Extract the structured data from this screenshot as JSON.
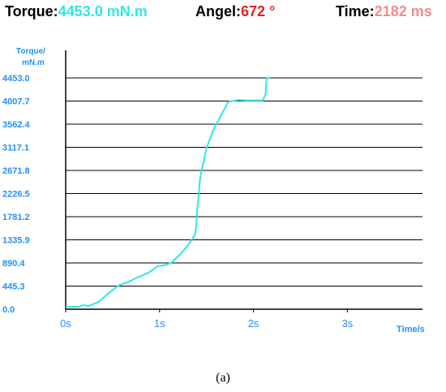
{
  "status": {
    "torque_label": "Torque:",
    "torque_value": "4453.0 mN.m",
    "angle_label": "Angel:",
    "angle_value": "672 °",
    "time_label": "Time:",
    "time_value": "2182 ms"
  },
  "colors": {
    "torque": "#2fe7e7",
    "angle": "#e8241c",
    "time": "#f08c8c",
    "axis_text": "#1e90ff",
    "line": "#2fe7e7",
    "grid": "#000000"
  },
  "chart_data": {
    "type": "line",
    "ylabel_line1": "Torque/",
    "ylabel_line2": "mN.m",
    "xlabel": "Time/s",
    "y_ticks": [
      "0.0",
      "445.3",
      "890.4",
      "1335.9",
      "1781.2",
      "2226.5",
      "2671.8",
      "3117.1",
      "3562.4",
      "4007.7",
      "4453.0"
    ],
    "x_ticks": [
      "0s",
      "1s",
      "2s",
      "3s"
    ],
    "ylim": [
      0,
      4453
    ],
    "xlim": [
      0,
      3.8
    ],
    "grid": true,
    "series": [
      {
        "x": [
          0,
          0.15,
          0.19,
          0.24,
          0.35,
          0.45,
          0.55,
          0.58,
          0.66,
          0.75,
          0.88,
          0.98,
          1.06,
          1.12,
          1.16,
          1.21,
          1.28,
          1.34,
          1.38,
          1.39,
          1.4,
          1.42,
          1.43,
          1.45,
          1.47,
          1.48,
          1.5,
          1.54,
          1.58,
          1.62,
          1.66,
          1.7,
          1.73,
          1.78,
          1.84,
          1.92,
          2.02,
          2.1,
          2.13,
          2.14,
          2.18
        ],
        "y": [
          40,
          50,
          80,
          60,
          140,
          300,
          440,
          470,
          520,
          600,
          700,
          830,
          850,
          890,
          960,
          1040,
          1180,
          1330,
          1450,
          1600,
          1900,
          2250,
          2500,
          2700,
          2840,
          2950,
          3100,
          3300,
          3480,
          3620,
          3760,
          3880,
          3990,
          4010,
          4030,
          4020,
          4020,
          4020,
          4150,
          4453,
          4453
        ]
      }
    ]
  }
}
